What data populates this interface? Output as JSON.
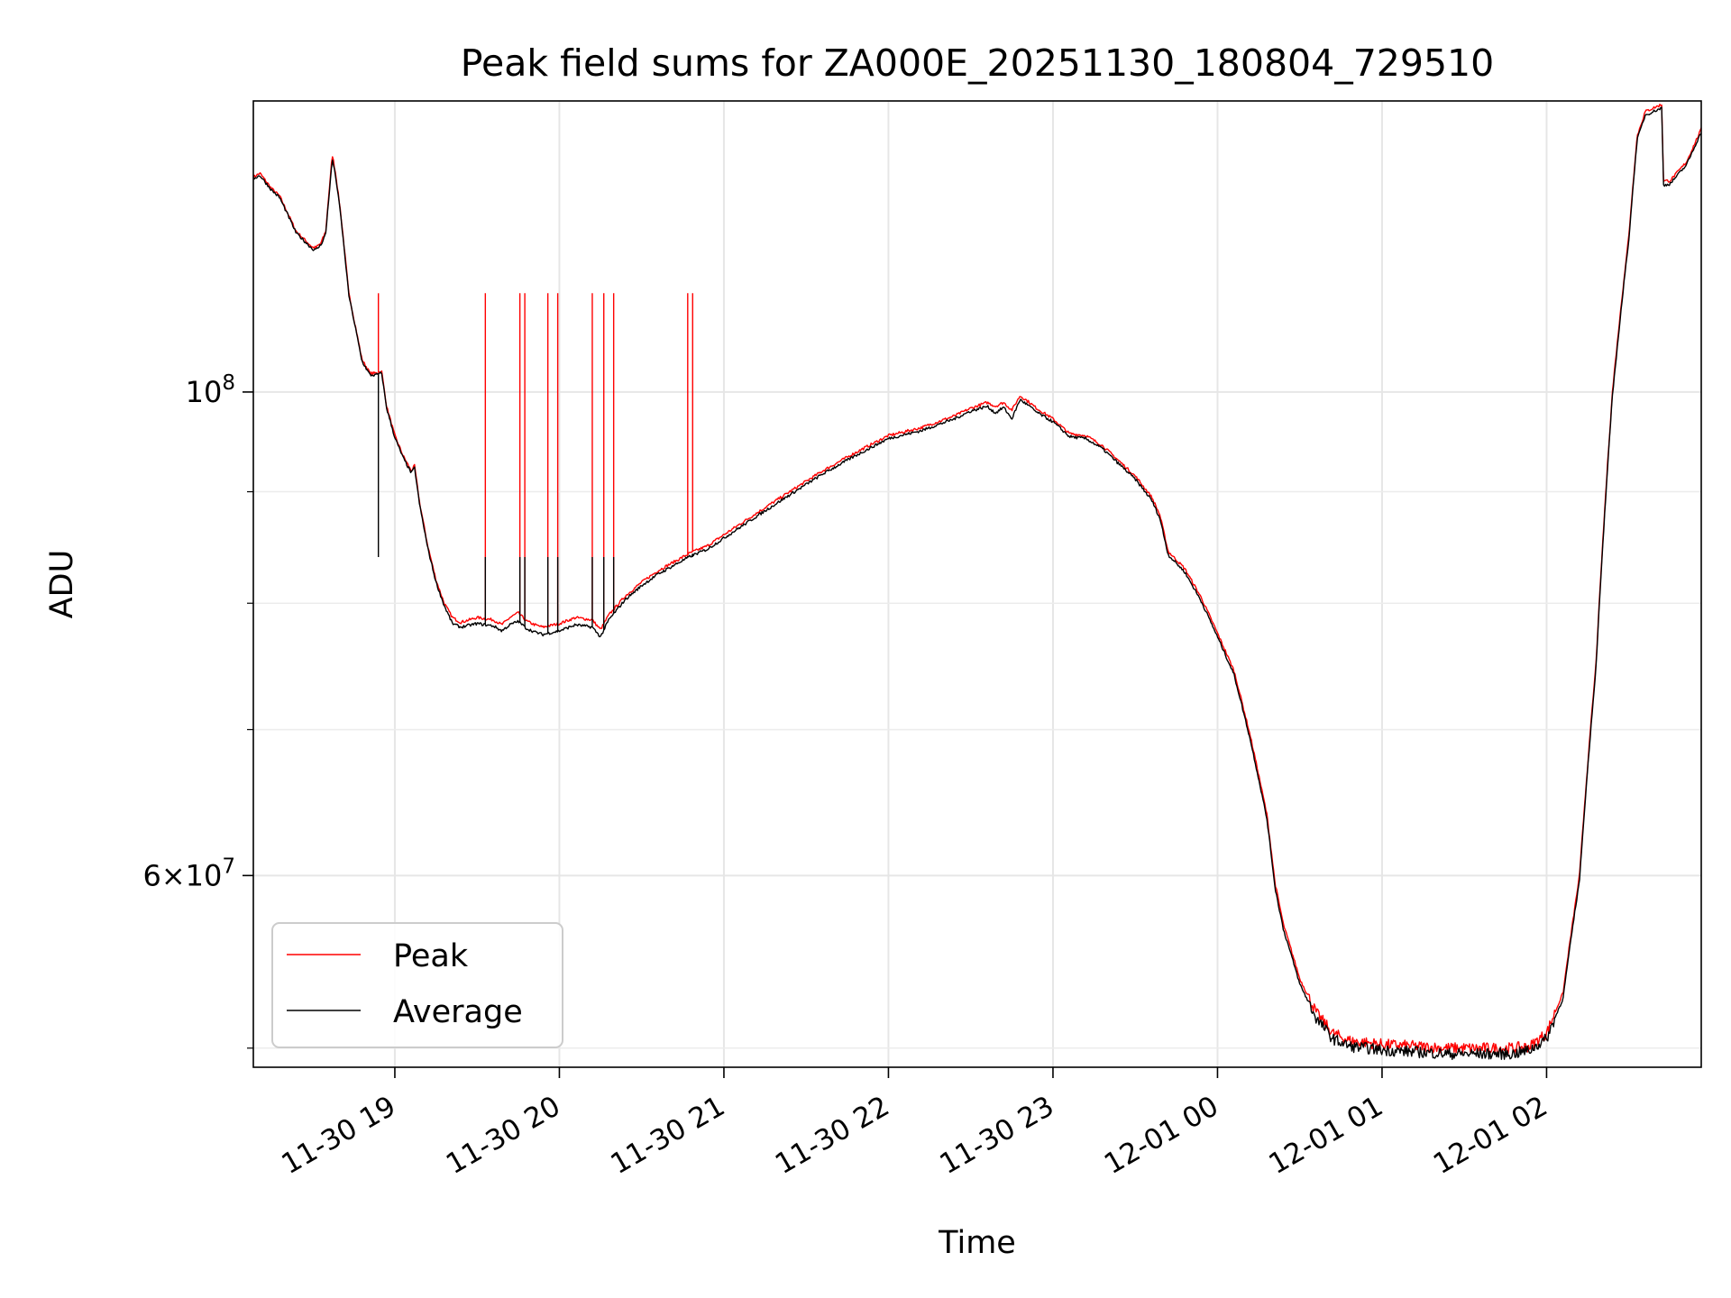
{
  "chart_data": {
    "type": "line",
    "title": "Peak field sums for ZA000E_20251130_180804_729510",
    "xlabel": "Time",
    "ylabel": "ADU",
    "y_scale": "log",
    "ylim": [
      49000000,
      136000000
    ],
    "xlim_hours": [
      18.14,
      26.94
    ],
    "grid": true,
    "legend_position": "lower-left",
    "x_ticks": [
      {
        "t": 19,
        "label": "11-30 19"
      },
      {
        "t": 20,
        "label": "11-30 20"
      },
      {
        "t": 21,
        "label": "11-30 21"
      },
      {
        "t": 22,
        "label": "11-30 22"
      },
      {
        "t": 23,
        "label": "11-30 23"
      },
      {
        "t": 24,
        "label": "12-01 00"
      },
      {
        "t": 25,
        "label": "12-01 01"
      },
      {
        "t": 26,
        "label": "12-01 02"
      }
    ],
    "y_major_ticks": [
      {
        "value": 100000000,
        "base": "10",
        "exp": "8",
        "mult": ""
      },
      {
        "value": 60000000,
        "base": "10",
        "exp": "7",
        "mult": "6"
      }
    ],
    "y_minor_ticks": [
      50000000,
      70000000,
      80000000,
      90000000
    ],
    "times_note": "x values are hours since 11-30 00:00 (values > 24 are 12-01)",
    "series": [
      {
        "name": "Peak",
        "color": "#ff0000",
        "points": [
          [
            18.14,
            125500000
          ],
          [
            18.18,
            126000000
          ],
          [
            18.25,
            124000000
          ],
          [
            18.3,
            123000000
          ],
          [
            18.4,
            118500000
          ],
          [
            18.5,
            116500000
          ],
          [
            18.52,
            116500000
          ],
          [
            18.55,
            117000000
          ],
          [
            18.58,
            118500000
          ],
          [
            18.62,
            128500000
          ],
          [
            18.64,
            126000000
          ],
          [
            18.67,
            121000000
          ],
          [
            18.72,
            111000000
          ],
          [
            18.8,
            103500000
          ],
          [
            18.85,
            102000000
          ],
          [
            18.88,
            102000000
          ],
          [
            18.92,
            102200000
          ],
          [
            18.95,
            98500000
          ],
          [
            19.0,
            95500000
          ],
          [
            19.05,
            93500000
          ],
          [
            19.1,
            92000000
          ],
          [
            19.12,
            92500000
          ],
          [
            19.15,
            89000000
          ],
          [
            19.2,
            85000000
          ],
          [
            19.25,
            82000000
          ],
          [
            19.3,
            80000000
          ],
          [
            19.35,
            78800000
          ],
          [
            19.4,
            78400000
          ],
          [
            19.5,
            78800000
          ],
          [
            19.6,
            78600000
          ],
          [
            19.65,
            78200000
          ],
          [
            19.7,
            78800000
          ],
          [
            19.75,
            79200000
          ],
          [
            19.8,
            78500000
          ],
          [
            19.85,
            78200000
          ],
          [
            19.9,
            78000000
          ],
          [
            20.0,
            78300000
          ],
          [
            20.1,
            78800000
          ],
          [
            20.2,
            78600000
          ],
          [
            20.25,
            77800000
          ],
          [
            20.3,
            79000000
          ],
          [
            20.4,
            80600000
          ],
          [
            20.5,
            81800000
          ],
          [
            20.6,
            82800000
          ],
          [
            20.7,
            83600000
          ],
          [
            20.8,
            84400000
          ],
          [
            20.9,
            85000000
          ],
          [
            21.0,
            86000000
          ],
          [
            21.2,
            88000000
          ],
          [
            21.4,
            90000000
          ],
          [
            21.6,
            92000000
          ],
          [
            21.8,
            93800000
          ],
          [
            22.0,
            95500000
          ],
          [
            22.2,
            96300000
          ],
          [
            22.4,
            97500000
          ],
          [
            22.5,
            98300000
          ],
          [
            22.6,
            98900000
          ],
          [
            22.65,
            98500000
          ],
          [
            22.7,
            98900000
          ],
          [
            22.75,
            98100000
          ],
          [
            22.8,
            99600000
          ],
          [
            22.85,
            99000000
          ],
          [
            22.9,
            98300000
          ],
          [
            23.0,
            97200000
          ],
          [
            23.1,
            95700000
          ],
          [
            23.2,
            95500000
          ],
          [
            23.3,
            94500000
          ],
          [
            23.4,
            93000000
          ],
          [
            23.5,
            91500000
          ],
          [
            23.6,
            89500000
          ],
          [
            23.65,
            87800000
          ],
          [
            23.7,
            84500000
          ],
          [
            23.8,
            83000000
          ],
          [
            23.9,
            80500000
          ],
          [
            24.0,
            77500000
          ],
          [
            24.1,
            74500000
          ],
          [
            24.2,
            69500000
          ],
          [
            24.3,
            64000000
          ],
          [
            24.35,
            59500000
          ],
          [
            24.4,
            57000000
          ],
          [
            24.5,
            53800000
          ],
          [
            24.6,
            51900000
          ],
          [
            24.7,
            50800000
          ],
          [
            24.8,
            50400000
          ],
          [
            25.0,
            50200000
          ],
          [
            25.2,
            50100000
          ],
          [
            25.4,
            50000000
          ],
          [
            25.6,
            50000000
          ],
          [
            25.8,
            50000000
          ],
          [
            25.9,
            50100000
          ],
          [
            26.0,
            50800000
          ],
          [
            26.1,
            53000000
          ],
          [
            26.2,
            60000000
          ],
          [
            26.3,
            75000000
          ],
          [
            26.4,
            100000000
          ],
          [
            26.5,
            118000000
          ],
          [
            26.55,
            131000000
          ],
          [
            26.6,
            134500000
          ],
          [
            26.7,
            135500000
          ],
          [
            26.71,
            125000000
          ],
          [
            26.75,
            125000000
          ],
          [
            26.85,
            127500000
          ],
          [
            26.94,
            132000000
          ]
        ],
        "spikes": [
          18.9,
          19.55,
          19.76,
          19.79,
          19.93,
          19.99,
          20.2,
          20.27,
          20.33,
          20.78,
          20.81
        ],
        "spike_top": 111000000
      },
      {
        "name": "Average",
        "color": "#000000",
        "points": [
          [
            18.14,
            125300000
          ],
          [
            18.18,
            125700000
          ],
          [
            18.25,
            123800000
          ],
          [
            18.3,
            122800000
          ],
          [
            18.4,
            118300000
          ],
          [
            18.5,
            116300000
          ],
          [
            18.52,
            116200000
          ],
          [
            18.55,
            116800000
          ],
          [
            18.58,
            118200000
          ],
          [
            18.62,
            127900000
          ],
          [
            18.64,
            125600000
          ],
          [
            18.67,
            120700000
          ],
          [
            18.72,
            110800000
          ],
          [
            18.8,
            103300000
          ],
          [
            18.85,
            101800000
          ],
          [
            18.88,
            101800000
          ],
          [
            18.92,
            102000000
          ],
          [
            18.95,
            98300000
          ],
          [
            19.0,
            95300000
          ],
          [
            19.05,
            93300000
          ],
          [
            19.1,
            91800000
          ],
          [
            19.12,
            92300000
          ],
          [
            19.15,
            88800000
          ],
          [
            19.2,
            84800000
          ],
          [
            19.25,
            81800000
          ],
          [
            19.3,
            79800000
          ],
          [
            19.35,
            78300000
          ],
          [
            19.4,
            78000000
          ],
          [
            19.5,
            78300000
          ],
          [
            19.6,
            78100000
          ],
          [
            19.65,
            77700000
          ],
          [
            19.7,
            78200000
          ],
          [
            19.75,
            78500000
          ],
          [
            19.8,
            77900000
          ],
          [
            19.85,
            77600000
          ],
          [
            19.9,
            77400000
          ],
          [
            20.0,
            77700000
          ],
          [
            20.1,
            78200000
          ],
          [
            20.2,
            78000000
          ],
          [
            20.25,
            77200000
          ],
          [
            20.3,
            78600000
          ],
          [
            20.4,
            80300000
          ],
          [
            20.5,
            81500000
          ],
          [
            20.6,
            82500000
          ],
          [
            20.7,
            83300000
          ],
          [
            20.8,
            84100000
          ],
          [
            20.9,
            84700000
          ],
          [
            21.0,
            85700000
          ],
          [
            21.2,
            87700000
          ],
          [
            21.4,
            89700000
          ],
          [
            21.6,
            91700000
          ],
          [
            21.8,
            93500000
          ],
          [
            22.0,
            95200000
          ],
          [
            22.2,
            96000000
          ],
          [
            22.4,
            97200000
          ],
          [
            22.5,
            98000000
          ],
          [
            22.6,
            98500000
          ],
          [
            22.65,
            97800000
          ],
          [
            22.7,
            98400000
          ],
          [
            22.75,
            97200000
          ],
          [
            22.8,
            99200000
          ],
          [
            22.85,
            98600000
          ],
          [
            22.9,
            97900000
          ],
          [
            23.0,
            96900000
          ],
          [
            23.1,
            95400000
          ],
          [
            23.2,
            95200000
          ],
          [
            23.3,
            94200000
          ],
          [
            23.4,
            92700000
          ],
          [
            23.5,
            91200000
          ],
          [
            23.6,
            89200000
          ],
          [
            23.65,
            87500000
          ],
          [
            23.7,
            84200000
          ],
          [
            23.8,
            82700000
          ],
          [
            23.9,
            80200000
          ],
          [
            24.0,
            77200000
          ],
          [
            24.1,
            74200000
          ],
          [
            24.2,
            69200000
          ],
          [
            24.3,
            63700000
          ],
          [
            24.35,
            59200000
          ],
          [
            24.4,
            56700000
          ],
          [
            24.5,
            53500000
          ],
          [
            24.6,
            51600000
          ],
          [
            24.7,
            50500000
          ],
          [
            24.8,
            50100000
          ],
          [
            25.0,
            49900000
          ],
          [
            25.2,
            49800000
          ],
          [
            25.4,
            49700000
          ],
          [
            25.6,
            49700000
          ],
          [
            25.8,
            49700000
          ],
          [
            25.9,
            49900000
          ],
          [
            26.0,
            50500000
          ],
          [
            26.1,
            52700000
          ],
          [
            26.2,
            59700000
          ],
          [
            26.3,
            74700000
          ],
          [
            26.4,
            99500000
          ],
          [
            26.5,
            117500000
          ],
          [
            26.55,
            130500000
          ],
          [
            26.6,
            134000000
          ],
          [
            26.7,
            135000000
          ],
          [
            26.71,
            124400000
          ],
          [
            26.75,
            124600000
          ],
          [
            26.85,
            127100000
          ],
          [
            26.94,
            131600000
          ]
        ],
        "spikes": [
          18.9,
          19.55,
          19.76,
          19.79,
          19.93,
          19.99,
          20.2,
          20.27,
          20.33,
          20.78,
          20.81
        ],
        "spike_top": 84000000
      }
    ]
  }
}
